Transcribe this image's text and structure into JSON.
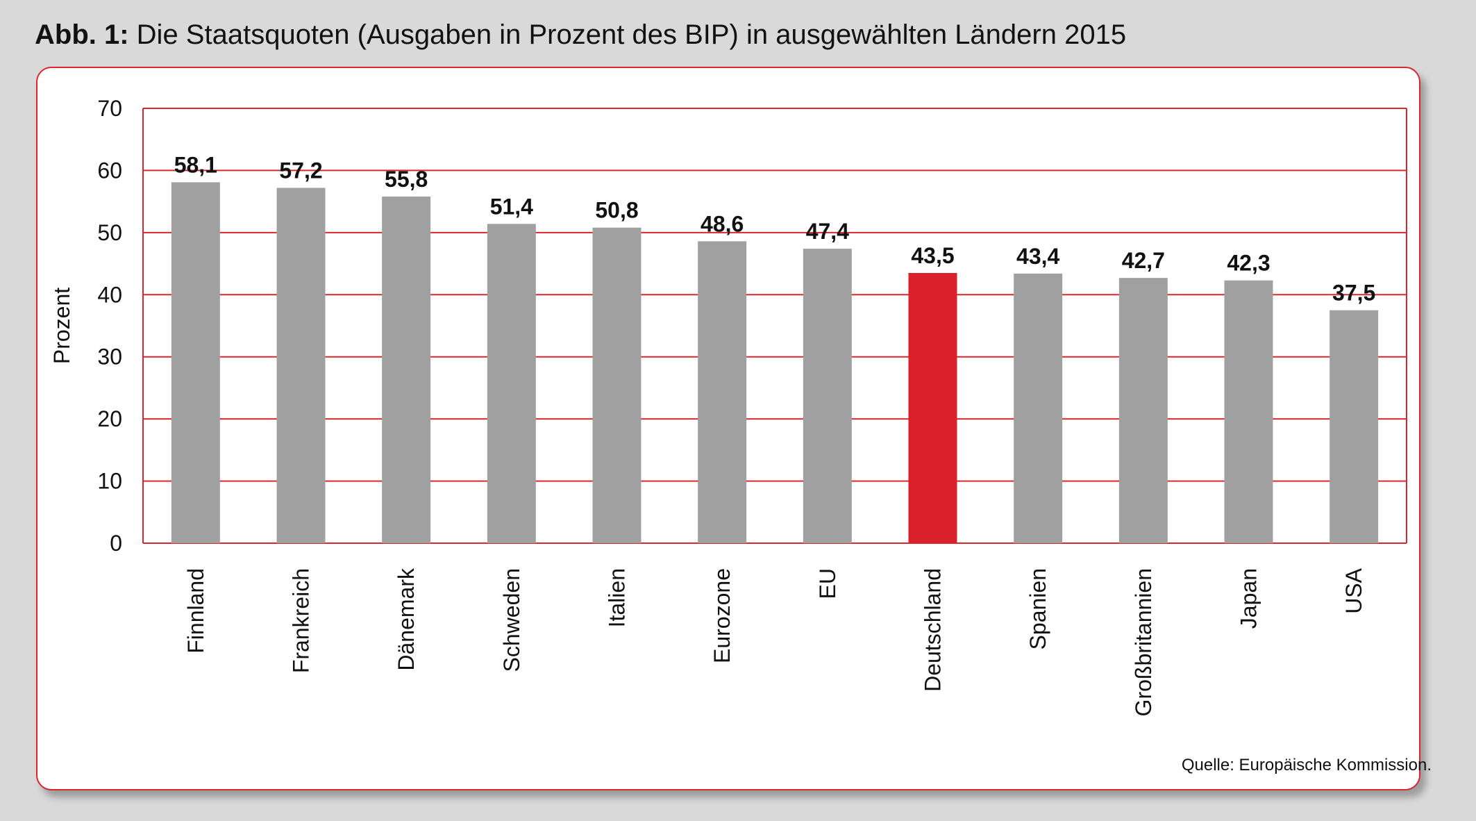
{
  "figure": {
    "label": "Abb. 1:",
    "title": "Die Staatsquoten (Ausgaben in Prozent des BIP) in ausgewählten Ländern 2015",
    "source": "Quelle: Europäische Kommission."
  },
  "colors": {
    "bar": "#a0a0a0",
    "highlight": "#d9202b",
    "grid": "#d9272e",
    "frame": "#d9272e"
  },
  "chart_data": {
    "type": "bar",
    "title": "Die Staatsquoten (Ausgaben in Prozent des BIP) in ausgewählten Ländern 2015",
    "xlabel": "",
    "ylabel": "Prozent",
    "ylim": [
      0,
      70
    ],
    "yticks": [
      0,
      10,
      20,
      30,
      40,
      50,
      60,
      70
    ],
    "grid": true,
    "categories": [
      "Finnland",
      "Frankreich",
      "Dänemark",
      "Schweden",
      "Italien",
      "Eurozone",
      "EU",
      "Deutschland",
      "Spanien",
      "Großbritannien",
      "Japan",
      "USA"
    ],
    "values": [
      58.1,
      57.2,
      55.8,
      51.4,
      50.8,
      48.6,
      47.4,
      43.5,
      43.4,
      42.7,
      42.3,
      37.5
    ],
    "value_labels": [
      "58,1",
      "57,2",
      "55,8",
      "51,4",
      "50,8",
      "48,6",
      "47,4",
      "43,5",
      "43,4",
      "42,7",
      "42,3",
      "37,5"
    ],
    "highlight_category": "Deutschland"
  }
}
